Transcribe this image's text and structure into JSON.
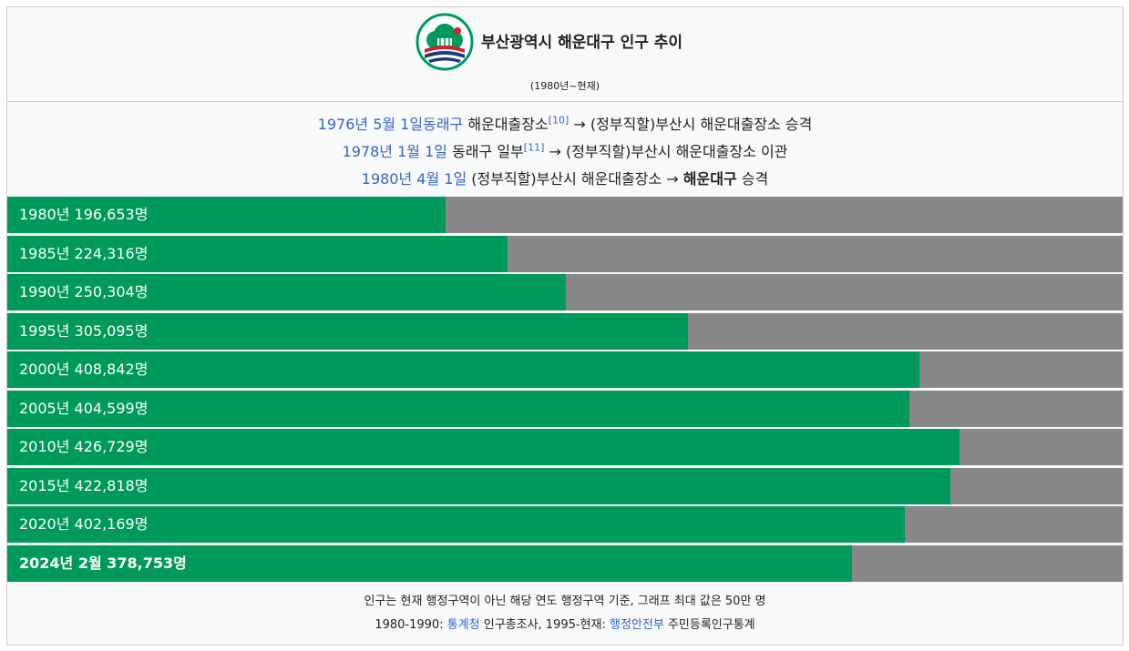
{
  "header": {
    "title": "부산광역시 해운대구 인구 추이",
    "subtitle": "(1980년~현재)"
  },
  "history": [
    {
      "date": "1976년 5월 1일",
      "parts": [
        {
          "text": "동래구",
          "link": true
        },
        {
          "text": " 해운대출장소",
          "link": false
        },
        {
          "text": "[10]",
          "sup": true
        },
        {
          "text": " → (정부직할)부산시 해운대출장소 승격",
          "link": false
        }
      ]
    },
    {
      "date": "1978년 1월 1일",
      "parts": [
        {
          "text": " 동래구 일부",
          "link": false
        },
        {
          "text": "[11]",
          "sup": true
        },
        {
          "text": " → (정부직할)부산시 해운대출장소 이관",
          "link": false
        }
      ]
    },
    {
      "date": "1980년 4월 1일",
      "parts": [
        {
          "text": " (정부직할)부산시 해운대출장소 → ",
          "link": false
        },
        {
          "text": "해운대구",
          "bold": true
        },
        {
          "text": " 승격",
          "link": false
        }
      ]
    }
  ],
  "chart_data": {
    "type": "bar",
    "orientation": "horizontal",
    "xlim": [
      0,
      500000
    ],
    "categories": [
      "1980년",
      "1985년",
      "1990년",
      "1995년",
      "2000년",
      "2005년",
      "2010년",
      "2015년",
      "2020년",
      "2024년 2월"
    ],
    "values": [
      196653,
      224316,
      250304,
      305095,
      408842,
      404599,
      426729,
      422818,
      402169,
      378753
    ],
    "labels": [
      "1980년 196,653명",
      "1985년 224,316명",
      "1990년 250,304명",
      "1995년 305,095명",
      "2000년 408,842명",
      "2005년 404,599명",
      "2010년 426,729명",
      "2015년 422,818명",
      "2020년 402,169명",
      "2024년 2월 378,753명"
    ],
    "bar_color": "#00995c",
    "track_color": "#888888"
  },
  "footer": {
    "note": "인구는 현재 행정구역이 아닌 해당 연도 행정구역 기준, 그래프 최대 값은 50만 명",
    "source_prefix": "1980-1990: ",
    "source_link1": "통계청",
    "source_mid": " 인구총조사, 1995-현재: ",
    "source_link2": "행정안전부",
    "source_suffix": " 주민등록인구통계"
  },
  "colors": {
    "link": "#3366cc",
    "emblem_green": "#00995c",
    "emblem_red": "#d2232a",
    "emblem_navy": "#1f3a7a"
  },
  "icons": {
    "emblem": "haeundae-district-emblem"
  }
}
